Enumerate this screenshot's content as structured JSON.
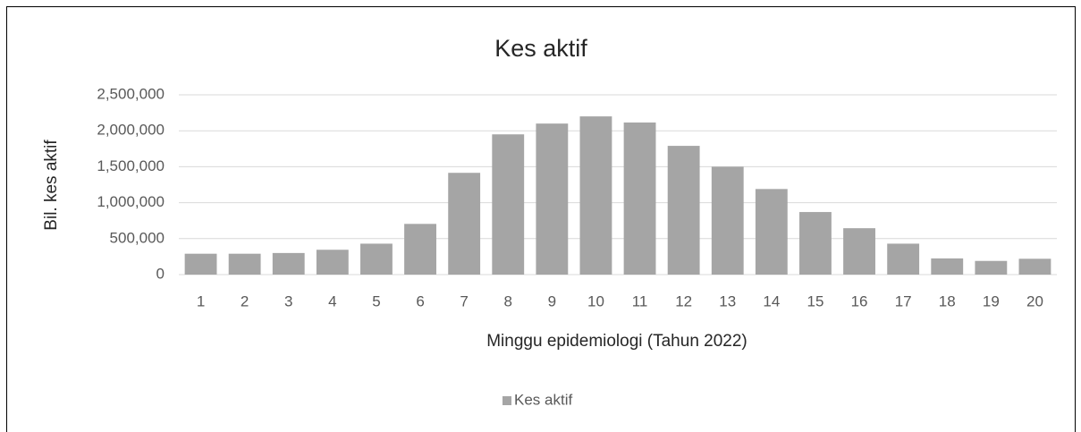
{
  "chart_data": {
    "type": "bar",
    "title": "Kes aktif",
    "x_label": "Minggu epidemiologi (Tahun 2022)",
    "y_label": "Bil. kes aktif",
    "categories": [
      "1",
      "2",
      "3",
      "4",
      "5",
      "6",
      "7",
      "8",
      "9",
      "10",
      "11",
      "12",
      "13",
      "14",
      "15",
      "16",
      "17",
      "18",
      "19",
      "20"
    ],
    "series": [
      {
        "name": "Kes aktif",
        "color": "#a5a5a5",
        "values": [
          290000,
          290000,
          300000,
          345000,
          430000,
          705000,
          1415000,
          1950000,
          2100000,
          2200000,
          2115000,
          1790000,
          1500000,
          1190000,
          870000,
          645000,
          430000,
          225000,
          190000,
          220000
        ]
      }
    ],
    "ylim": [
      0,
      2500000
    ],
    "yticks": [
      0,
      {
        "value": 500000,
        "label": "500,000"
      },
      {
        "value": 1000000,
        "label": "1,000,000"
      },
      {
        "value": 1500000,
        "label": "1,500,000"
      },
      {
        "value": 2000000,
        "label": "2,000,000"
      },
      {
        "value": 2500000,
        "label": "2,500,000"
      }
    ],
    "grid": true,
    "legend": "bottom"
  }
}
